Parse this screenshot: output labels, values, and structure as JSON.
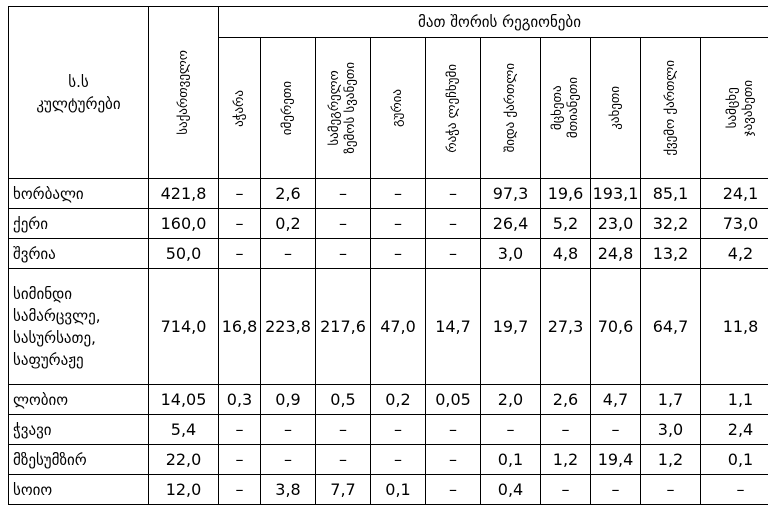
{
  "header": {
    "crops_label_line1": "ს.ს",
    "crops_label_line2": "კულტურები",
    "georgia": "საქართველო",
    "regions_group": "მათ შორის რეგიონები",
    "regions": [
      {
        "line1": "აჭარა",
        "line2": ""
      },
      {
        "line1": "იმერეთი",
        "line2": ""
      },
      {
        "line1": "სამეგრელო",
        "line2": "ზემოს სვანეთი"
      },
      {
        "line1": "გურია",
        "line2": ""
      },
      {
        "line1": "რაჭა ლეჩხუმი",
        "line2": ""
      },
      {
        "line1": "შიდა ქართლი",
        "line2": ""
      },
      {
        "line1": "მცხეთა",
        "line2": "მთიანეთი"
      },
      {
        "line1": "კახეთი",
        "line2": ""
      },
      {
        "line1": "ქვემო ქართლი",
        "line2": ""
      },
      {
        "line1": "სამცხე",
        "line2": "ჯავახეთი"
      }
    ]
  },
  "rows": [
    {
      "crop": "ხორბალი",
      "georgia": "421,8",
      "values": [
        "–",
        "2,6",
        "–",
        "–",
        "–",
        "97,3",
        "19,6",
        "193,1",
        "85,1",
        "24,1"
      ]
    },
    {
      "crop": "ქერი",
      "georgia": "160,0",
      "values": [
        "–",
        "0,2",
        "–",
        "–",
        "–",
        "26,4",
        "5,2",
        "23,0",
        "32,2",
        "73,0"
      ]
    },
    {
      "crop": "შვრია",
      "georgia": "50,0",
      "values": [
        "–",
        "–",
        "–",
        "–",
        "–",
        "3,0",
        "4,8",
        "24,8",
        "13,2",
        "4,2"
      ]
    },
    {
      "crop": "სიმინდი სამარცვლე, სასურსათე, საფურაჟე",
      "georgia": "714,0",
      "values": [
        "16,8",
        "223,8",
        "217,6",
        "47,0",
        "14,7",
        "19,7",
        "27,3",
        "70,6",
        "64,7",
        "11,8"
      ]
    },
    {
      "crop": "ლობიო",
      "georgia": "14,05",
      "values": [
        "0,3",
        "0,9",
        "0,5",
        "0,2",
        "0,05",
        "2,0",
        "2,6",
        "4,7",
        "1,7",
        "1,1"
      ]
    },
    {
      "crop": "ჭვავი",
      "georgia": "5,4",
      "values": [
        "–",
        "–",
        "–",
        "–",
        "–",
        "–",
        "–",
        "–",
        "3,0",
        "2,4"
      ]
    },
    {
      "crop": "მზესუმზირ",
      "georgia": "22,0",
      "values": [
        "–",
        "–",
        "–",
        "–",
        "–",
        "0,1",
        "1,2",
        "19,4",
        "1,2",
        "0,1"
      ]
    },
    {
      "crop": "სოიო",
      "georgia": "12,0",
      "values": [
        "–",
        "3,8",
        "7,7",
        "0,1",
        "–",
        "0,4",
        "–",
        "–",
        "–",
        "–"
      ]
    }
  ]
}
